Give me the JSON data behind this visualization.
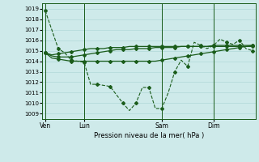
{
  "xlabel": "Pression niveau de la mer( hPa )",
  "ylim": [
    1008.5,
    1019.5
  ],
  "yticks": [
    1009,
    1010,
    1011,
    1012,
    1013,
    1014,
    1015,
    1016,
    1017,
    1018,
    1019
  ],
  "bg_color": "#ceeaea",
  "line_color": "#1a5c1a",
  "grid_color": "#b0d8d8",
  "xtick_labels": [
    "Ven",
    "Lun",
    "Sam",
    "Dim"
  ],
  "xtick_positions": [
    0,
    6,
    18,
    26
  ],
  "total_points": 33,
  "vline_positions": [
    0,
    6,
    18,
    26
  ],
  "series": [
    [
      1018.8,
      1017.0,
      1015.2,
      1014.8,
      1014.1,
      1014.0,
      1013.9,
      1011.8,
      1011.8,
      1011.7,
      1011.6,
      1010.8,
      1010.0,
      1009.3,
      1010.0,
      1011.5,
      1011.5,
      1009.5,
      1009.5,
      1011.0,
      1013.0,
      1014.1,
      1013.5,
      1015.8,
      1015.5,
      1015.2,
      1015.5,
      1016.1,
      1015.8,
      1015.6,
      1016.0,
      1015.2,
      1015.0
    ],
    [
      1014.8,
      1014.3,
      1014.2,
      1014.1,
      1014.0,
      1014.0,
      1014.0,
      1014.0,
      1014.0,
      1014.0,
      1014.0,
      1014.0,
      1014.0,
      1014.0,
      1014.0,
      1014.0,
      1014.0,
      1014.0,
      1014.1,
      1014.2,
      1014.3,
      1014.4,
      1014.5,
      1014.6,
      1014.7,
      1014.8,
      1014.9,
      1015.0,
      1015.1,
      1015.2,
      1015.3,
      1015.4,
      1015.5
    ],
    [
      1014.8,
      1014.5,
      1014.4,
      1014.4,
      1014.4,
      1014.5,
      1014.6,
      1014.7,
      1014.8,
      1014.9,
      1015.0,
      1015.1,
      1015.1,
      1015.1,
      1015.2,
      1015.2,
      1015.2,
      1015.3,
      1015.3,
      1015.3,
      1015.3,
      1015.4,
      1015.4,
      1015.4,
      1015.4,
      1015.4,
      1015.5,
      1015.5,
      1015.5,
      1015.5,
      1015.5,
      1015.5,
      1015.5
    ],
    [
      1014.8,
      1014.6,
      1014.7,
      1014.8,
      1014.9,
      1015.0,
      1015.1,
      1015.2,
      1015.2,
      1015.2,
      1015.3,
      1015.3,
      1015.3,
      1015.4,
      1015.4,
      1015.4,
      1015.4,
      1015.4,
      1015.4,
      1015.4,
      1015.4,
      1015.4,
      1015.4,
      1015.4,
      1015.4,
      1015.4,
      1015.4,
      1015.4,
      1015.4,
      1015.4,
      1015.4,
      1015.4,
      1015.4
    ]
  ],
  "series_styles": [
    {
      "marker": "D",
      "markersize": 2.0,
      "linewidth": 0.8,
      "linestyle": "--"
    },
    {
      "marker": "D",
      "markersize": 2.0,
      "linewidth": 0.9,
      "linestyle": "-"
    },
    {
      "marker": "D",
      "markersize": 2.0,
      "linewidth": 0.9,
      "linestyle": "-"
    },
    {
      "marker": "D",
      "markersize": 2.0,
      "linewidth": 0.9,
      "linestyle": "-"
    }
  ]
}
